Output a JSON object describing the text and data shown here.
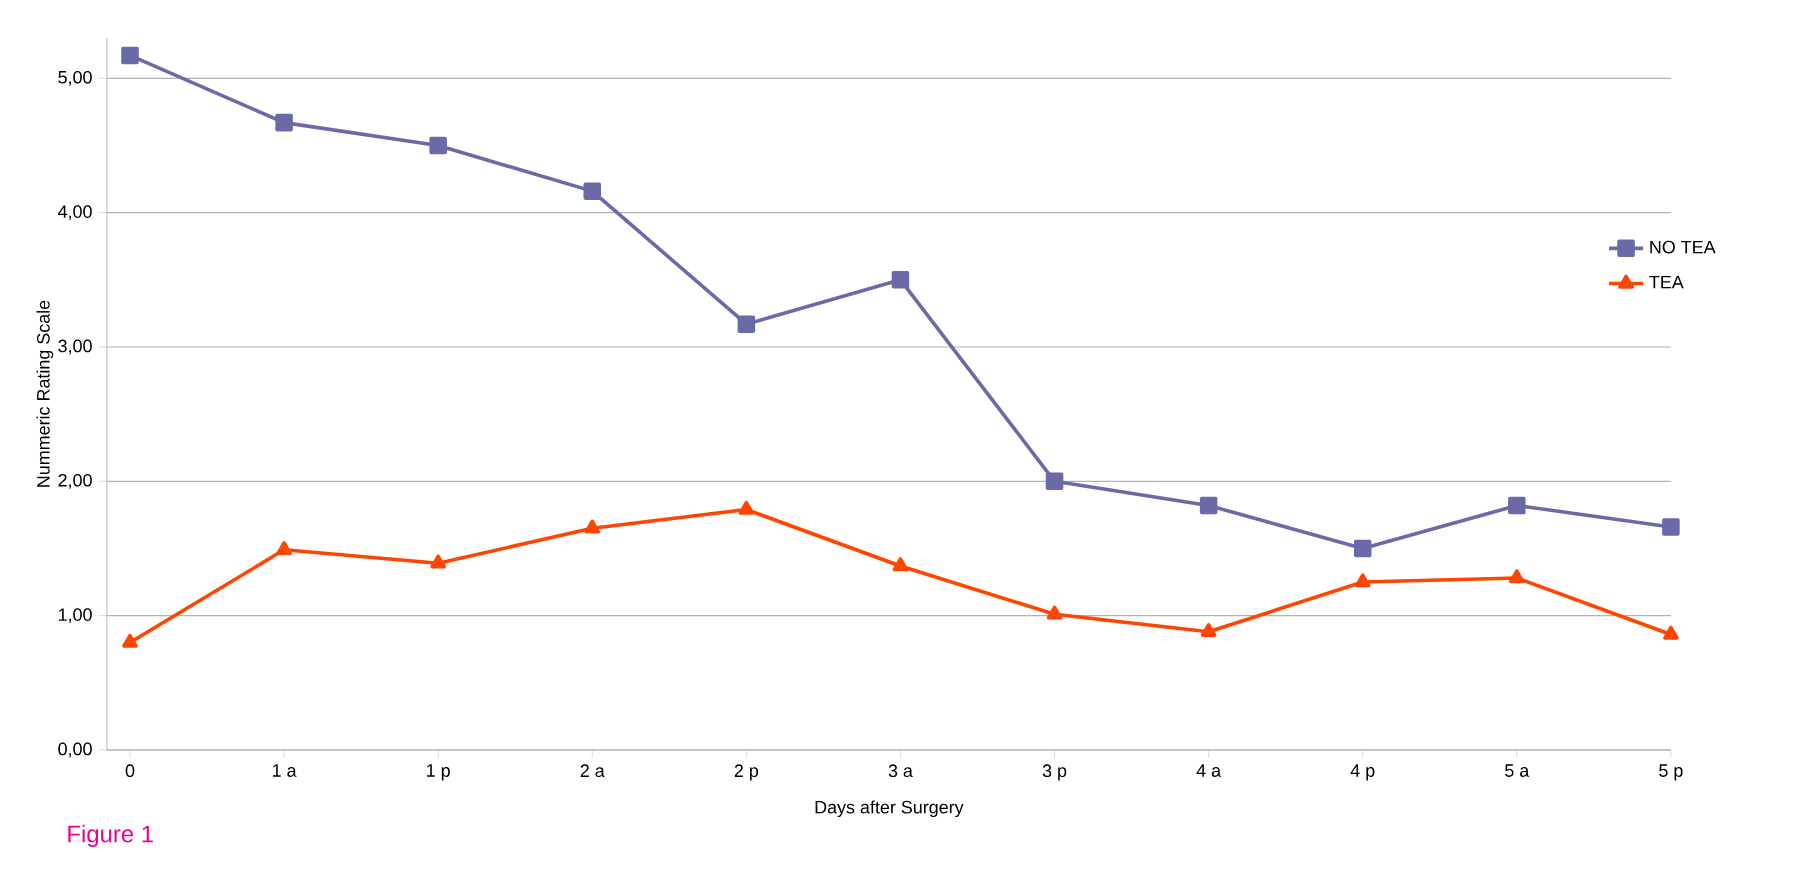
{
  "chart_data": {
    "type": "line",
    "xlabel": "Days after Surgery",
    "ylabel": "Nummeric Rating Scale",
    "categories": [
      "0",
      "1 a",
      "1 p",
      "2 a",
      "2 p",
      "3 a",
      "3 p",
      "4 a",
      "4 p",
      "5 a",
      "5 p"
    ],
    "series": [
      {
        "name": "NO TEA",
        "color": "#6b6aa8",
        "marker": "square",
        "values": [
          5.17,
          4.67,
          4.5,
          4.16,
          3.17,
          3.5,
          2.0,
          1.82,
          1.5,
          1.82,
          1.66
        ]
      },
      {
        "name": "TEA",
        "color": "#ff4500",
        "marker": "triangle",
        "values": [
          0.8,
          1.49,
          1.39,
          1.65,
          1.79,
          1.37,
          1.01,
          0.88,
          1.25,
          1.28,
          0.86
        ]
      }
    ],
    "ylim": [
      0,
      5.3
    ],
    "yticks": [
      {
        "value": 0,
        "label": "0,00"
      },
      {
        "value": 1,
        "label": "1,00"
      },
      {
        "value": 2,
        "label": "2,00"
      },
      {
        "value": 3,
        "label": "3,00"
      },
      {
        "value": 4,
        "label": "4,00"
      },
      {
        "value": 5,
        "label": "5,00"
      }
    ],
    "grid": "y",
    "legend": "right",
    "annotations": [
      "Figure 1"
    ]
  }
}
